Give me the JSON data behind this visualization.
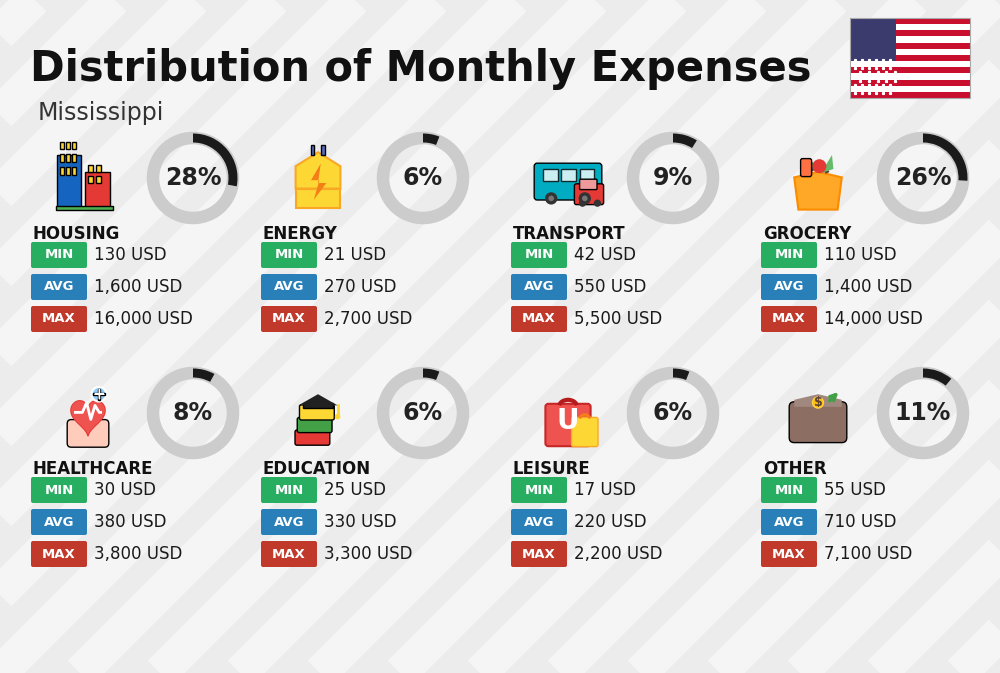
{
  "title": "Distribution of Monthly Expenses",
  "subtitle": "Mississippi",
  "bg_color": "#ececec",
  "categories": [
    {
      "name": "HOUSING",
      "pct": 28,
      "min_val": "130 USD",
      "avg_val": "1,600 USD",
      "max_val": "16,000 USD",
      "row": 0,
      "col": 0
    },
    {
      "name": "ENERGY",
      "pct": 6,
      "min_val": "21 USD",
      "avg_val": "270 USD",
      "max_val": "2,700 USD",
      "row": 0,
      "col": 1
    },
    {
      "name": "TRANSPORT",
      "pct": 9,
      "min_val": "42 USD",
      "avg_val": "550 USD",
      "max_val": "5,500 USD",
      "row": 0,
      "col": 2
    },
    {
      "name": "GROCERY",
      "pct": 26,
      "min_val": "110 USD",
      "avg_val": "1,400 USD",
      "max_val": "14,000 USD",
      "row": 0,
      "col": 3
    },
    {
      "name": "HEALTHCARE",
      "pct": 8,
      "min_val": "30 USD",
      "avg_val": "380 USD",
      "max_val": "3,800 USD",
      "row": 1,
      "col": 0
    },
    {
      "name": "EDUCATION",
      "pct": 6,
      "min_val": "25 USD",
      "avg_val": "330 USD",
      "max_val": "3,300 USD",
      "row": 1,
      "col": 1
    },
    {
      "name": "LEISURE",
      "pct": 6,
      "min_val": "17 USD",
      "avg_val": "220 USD",
      "max_val": "2,200 USD",
      "row": 1,
      "col": 2
    },
    {
      "name": "OTHER",
      "pct": 11,
      "min_val": "55 USD",
      "avg_val": "710 USD",
      "max_val": "7,100 USD",
      "row": 1,
      "col": 3
    }
  ],
  "min_color": "#27ae60",
  "avg_color": "#2980b9",
  "max_color": "#c0392b",
  "donut_bg": "#cccccc",
  "donut_fg": "#1a1a1a",
  "title_fontsize": 30,
  "subtitle_fontsize": 17,
  "cat_fontsize": 12,
  "val_fontsize": 12,
  "pct_fontsize": 17,
  "stripe_color": "#ffffff",
  "stripe_alpha": 0.5
}
